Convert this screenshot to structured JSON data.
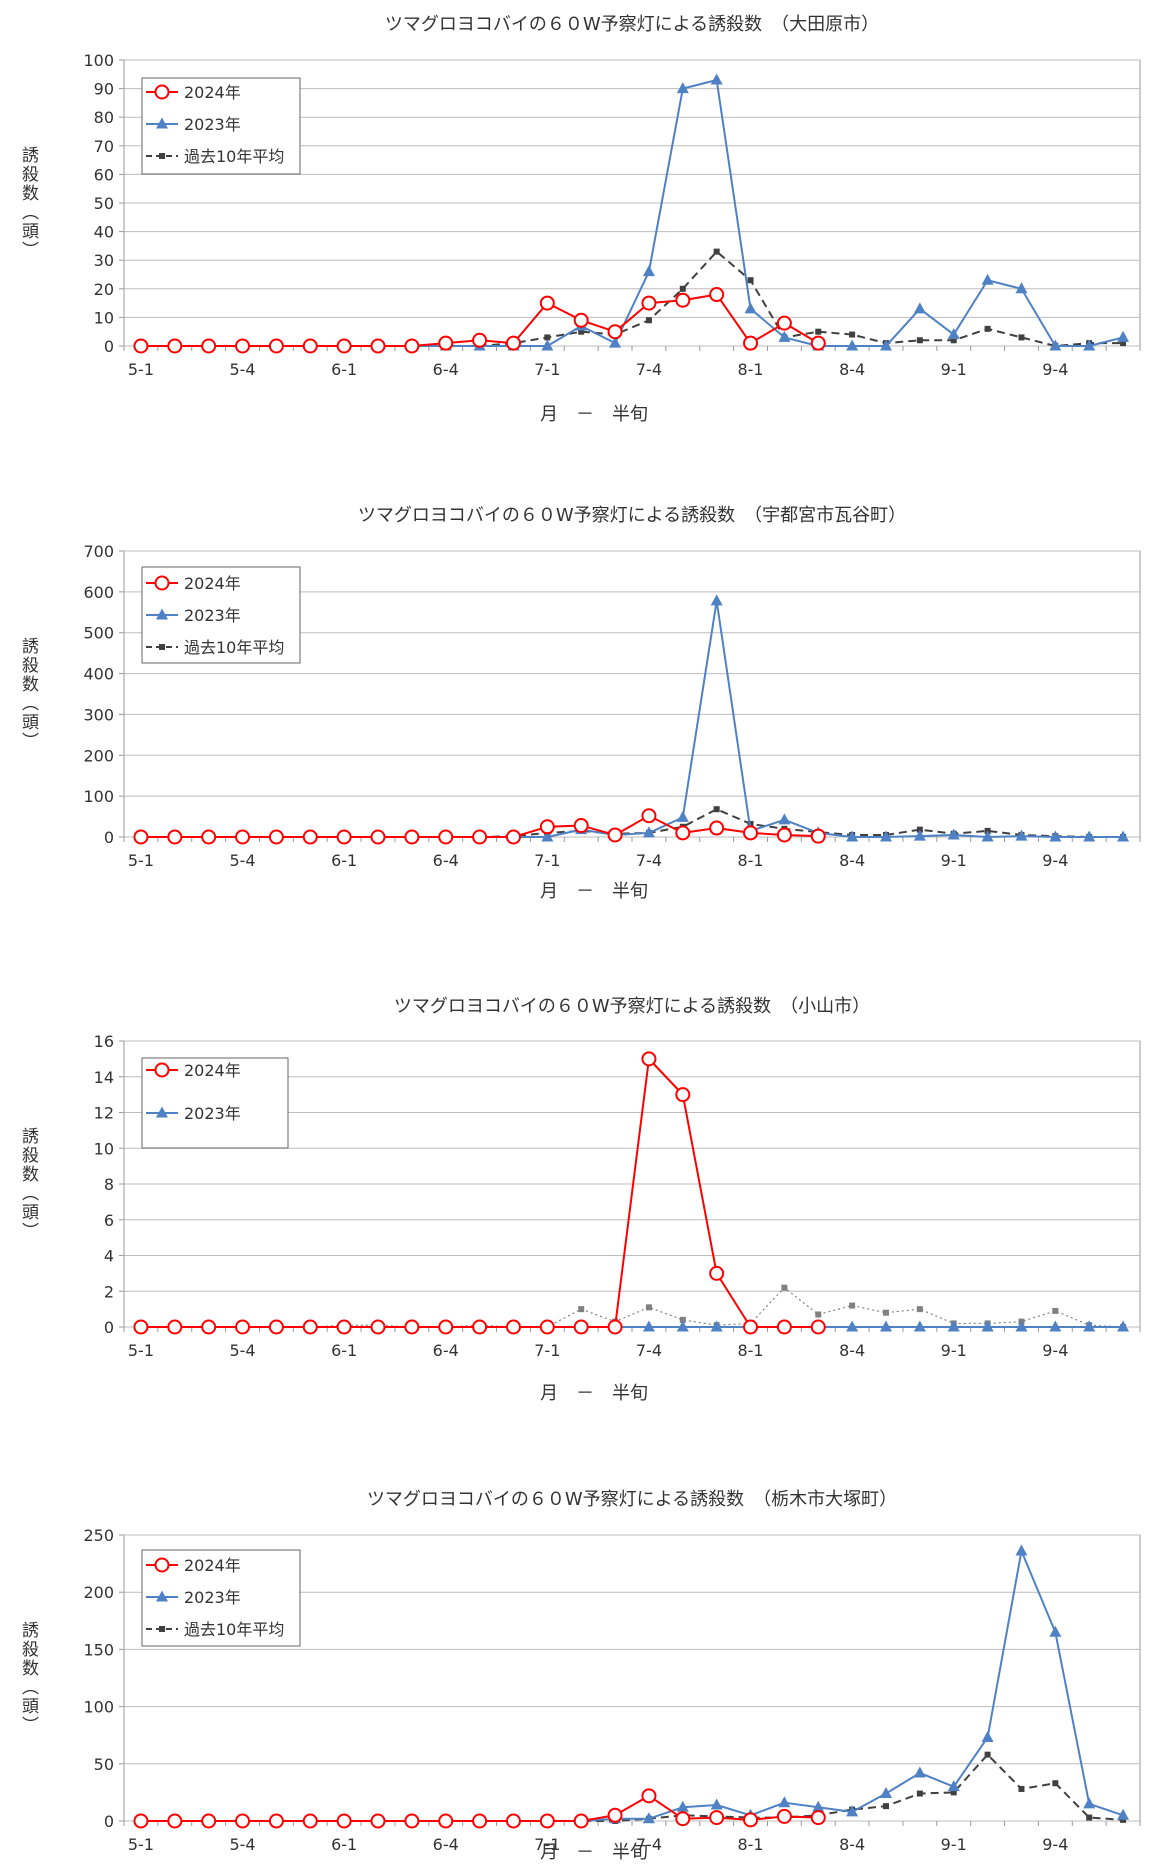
{
  "chart_data": [
    {
      "type": "line",
      "title": "ツマグロヨコバイの６０W予察灯による誘殺数　（大田原市）",
      "ylabel": "誘殺数（頭）",
      "xlabel": "月　－　半旬",
      "ylim": [
        0,
        100
      ],
      "yticks": [
        0,
        10,
        20,
        30,
        40,
        50,
        60,
        70,
        80,
        90,
        100
      ],
      "x_tick_labels": [
        "5-1",
        "5-4",
        "6-1",
        "6-4",
        "7-1",
        "7-4",
        "8-1",
        "8-4",
        "9-1",
        "9-4"
      ],
      "legend_position": "top-left",
      "series": [
        {
          "name": "2024年",
          "color": "#ff0000",
          "marker": "circle",
          "style": "solid",
          "values": [
            0,
            0,
            0,
            0,
            0,
            0,
            0,
            0,
            0,
            1,
            2,
            1,
            15,
            9,
            5,
            15,
            16,
            18,
            1,
            8,
            1
          ]
        },
        {
          "name": "2023年",
          "color": "#4f81c5",
          "marker": "triangle",
          "style": "solid",
          "values": [
            0,
            0,
            0,
            0,
            0,
            0,
            0,
            0,
            0,
            0,
            0,
            0,
            0,
            7,
            1,
            26,
            90,
            93,
            13,
            3,
            0,
            0,
            0,
            13,
            4,
            23,
            20,
            0,
            0,
            3
          ]
        },
        {
          "name": "過去10年平均",
          "color": "#404040",
          "marker": "square",
          "style": "dash",
          "values": [
            0,
            0,
            0,
            0,
            0,
            0,
            0,
            0,
            0,
            0,
            0,
            1,
            3,
            5,
            4,
            9,
            20,
            33,
            23,
            3,
            5,
            4,
            1,
            2,
            2,
            6,
            3,
            0,
            1,
            1
          ]
        }
      ]
    },
    {
      "type": "line",
      "title": "ツマグロヨコバイの６０W予察灯による誘殺数　（宇都宮市瓦谷町）",
      "ylabel": "誘殺数（頭）",
      "xlabel": "月　－　半旬",
      "ylim": [
        0,
        700
      ],
      "yticks": [
        0,
        100,
        200,
        300,
        400,
        500,
        600,
        700
      ],
      "x_tick_labels": [
        "5-1",
        "5-4",
        "6-1",
        "6-4",
        "7-1",
        "7-4",
        "8-1",
        "8-4",
        "9-1",
        "9-4"
      ],
      "legend_position": "top-left",
      "series": [
        {
          "name": "2024年",
          "color": "#ff0000",
          "marker": "circle",
          "style": "solid",
          "values": [
            0,
            0,
            0,
            0,
            0,
            0,
            0,
            0,
            0,
            0,
            0,
            0,
            25,
            28,
            5,
            52,
            10,
            22,
            10,
            5,
            2
          ]
        },
        {
          "name": "2023年",
          "color": "#4f81c5",
          "marker": "triangle",
          "style": "solid",
          "values": [
            0,
            0,
            0,
            0,
            0,
            0,
            0,
            0,
            0,
            0,
            0,
            0,
            0,
            18,
            5,
            10,
            48,
            578,
            15,
            42,
            10,
            0,
            0,
            2,
            5,
            0,
            2,
            0,
            0,
            0
          ]
        },
        {
          "name": "過去10年平均",
          "color": "#404040",
          "marker": "square",
          "style": "dash",
          "values": [
            0,
            0,
            0,
            0,
            0,
            0,
            0,
            0,
            0,
            0,
            0,
            2,
            10,
            15,
            8,
            10,
            25,
            68,
            32,
            20,
            12,
            5,
            5,
            18,
            8,
            15,
            5,
            2,
            0,
            0
          ]
        }
      ]
    },
    {
      "type": "line",
      "title": "ツマグロヨコバイの６０W予察灯による誘殺数　（小山市）",
      "ylabel": "誘殺数（頭）",
      "xlabel": "月　－　半旬",
      "ylim": [
        0,
        16
      ],
      "yticks": [
        0,
        2,
        4,
        6,
        8,
        10,
        12,
        14,
        16
      ],
      "x_tick_labels": [
        "5-1",
        "5-4",
        "6-1",
        "6-4",
        "7-1",
        "7-4",
        "8-1",
        "8-4",
        "9-1",
        "9-4"
      ],
      "legend_position": "top-left",
      "series": [
        {
          "name": "2024年",
          "color": "#ff0000",
          "marker": "circle",
          "style": "solid",
          "values": [
            0,
            0,
            0,
            0,
            0,
            0,
            0,
            0,
            0,
            0,
            0,
            0,
            0,
            0,
            0,
            15,
            13,
            3,
            0,
            0,
            0
          ]
        },
        {
          "name": "2023年",
          "color": "#4f81c5",
          "marker": "triangle",
          "style": "solid",
          "values": [
            0,
            0,
            0,
            0,
            0,
            0,
            0,
            0,
            0,
            0,
            0,
            0,
            0,
            0,
            0,
            0,
            0,
            0,
            0,
            0,
            0,
            0,
            0,
            0,
            0,
            0,
            0,
            0,
            0,
            0
          ]
        },
        {
          "name": "",
          "color": "#808080",
          "marker": "square",
          "style": "dot",
          "values": [
            0,
            0,
            0,
            0,
            0,
            0,
            0.1,
            0.1,
            0,
            0,
            0.1,
            0,
            0,
            1,
            0.3,
            1.1,
            0.4,
            0.1,
            0.2,
            2.2,
            0.7,
            1.2,
            0.8,
            1,
            0.2,
            0.2,
            0.3,
            0.9,
            0.1,
            0
          ]
        }
      ]
    },
    {
      "type": "line",
      "title": "ツマグロヨコバイの６０W予察灯による誘殺数　（栃木市大塚町）",
      "ylabel": "誘殺数（頭）",
      "xlabel": "月　－　半旬",
      "ylim": [
        0,
        250
      ],
      "yticks": [
        0,
        50,
        100,
        150,
        200,
        250
      ],
      "x_tick_labels": [
        "5-1",
        "5-4",
        "6-1",
        "6-4",
        "7-1",
        "7-4",
        "8-1",
        "8-4",
        "9-1",
        "9-4"
      ],
      "legend_position": "top-left",
      "series": [
        {
          "name": "2024年",
          "color": "#ff0000",
          "marker": "circle",
          "style": "solid",
          "values": [
            0,
            0,
            0,
            0,
            0,
            0,
            0,
            0,
            0,
            0,
            0,
            0,
            0,
            0,
            5,
            22,
            2,
            3,
            1,
            4,
            3
          ]
        },
        {
          "name": "2023年",
          "color": "#4f81c5",
          "marker": "triangle",
          "style": "solid",
          "values": [
            0,
            0,
            0,
            0,
            0,
            0,
            0,
            0,
            0,
            0,
            0,
            0,
            0,
            0,
            2,
            2,
            12,
            14,
            5,
            16,
            12,
            8,
            24,
            42,
            30,
            73,
            236,
            165,
            15,
            5
          ]
        },
        {
          "name": "過去10年平均",
          "color": "#404040",
          "marker": "square",
          "style": "dash",
          "values": [
            0,
            0,
            0,
            0,
            0,
            0,
            0,
            0,
            0,
            0,
            0,
            0,
            0,
            0,
            0,
            2,
            5,
            4,
            3,
            3,
            5,
            10,
            13,
            24,
            25,
            58,
            28,
            33,
            3,
            1
          ]
        }
      ]
    }
  ]
}
